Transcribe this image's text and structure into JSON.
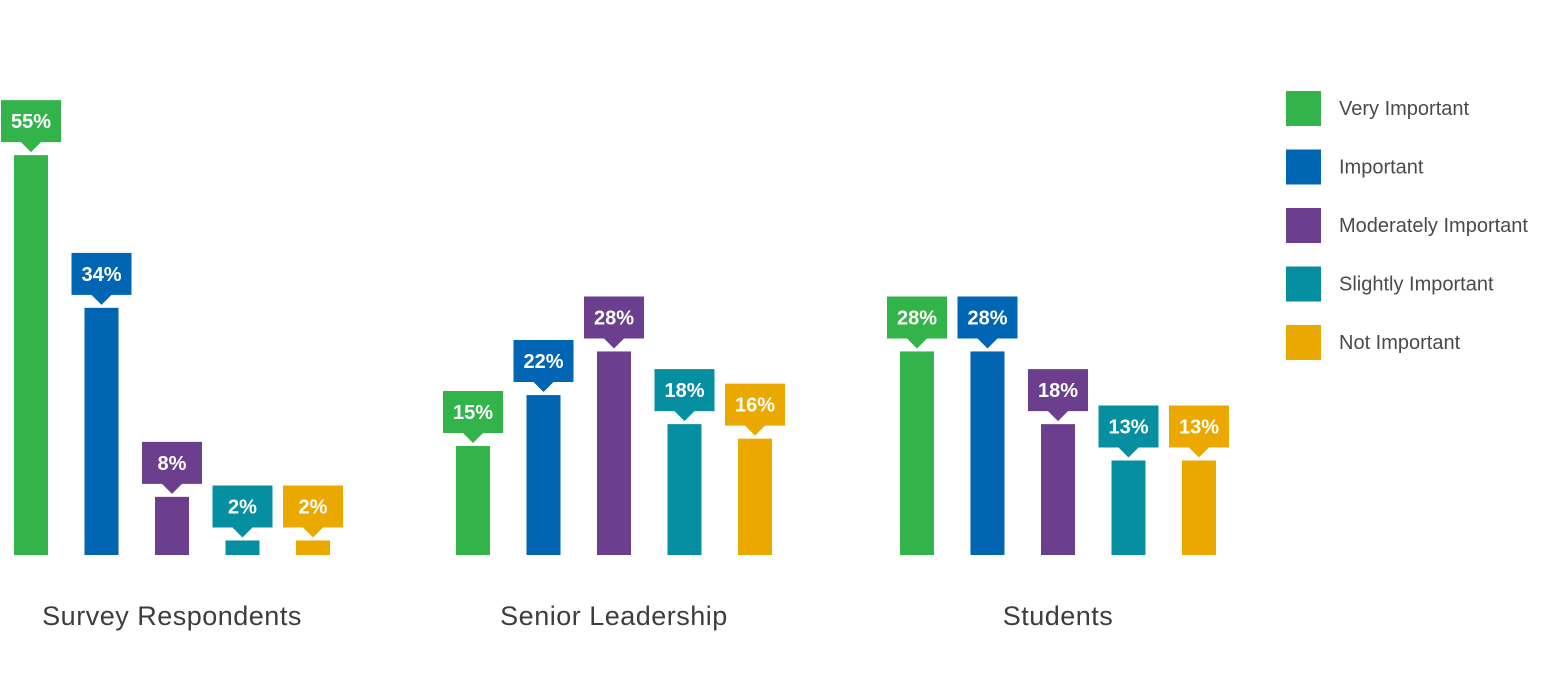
{
  "chart_data": {
    "type": "bar",
    "categories": [
      "Survey Respondents",
      "Senior Leadership",
      "Students"
    ],
    "series": [
      {
        "name": "Very Important",
        "color": "#32b44a",
        "values": [
          55,
          15,
          28
        ]
      },
      {
        "name": "Important",
        "color": "#0066b3",
        "values": [
          34,
          22,
          28
        ]
      },
      {
        "name": "Moderately Important",
        "color": "#6b3f8e",
        "values": [
          8,
          28,
          18
        ]
      },
      {
        "name": "Slightly Important",
        "color": "#068fa0",
        "values": [
          2,
          18,
          13
        ]
      },
      {
        "name": "Not Important",
        "color": "#eba900",
        "values": [
          2,
          16,
          13
        ]
      }
    ],
    "value_suffix": "%",
    "legend_position": "right",
    "grid": false
  }
}
